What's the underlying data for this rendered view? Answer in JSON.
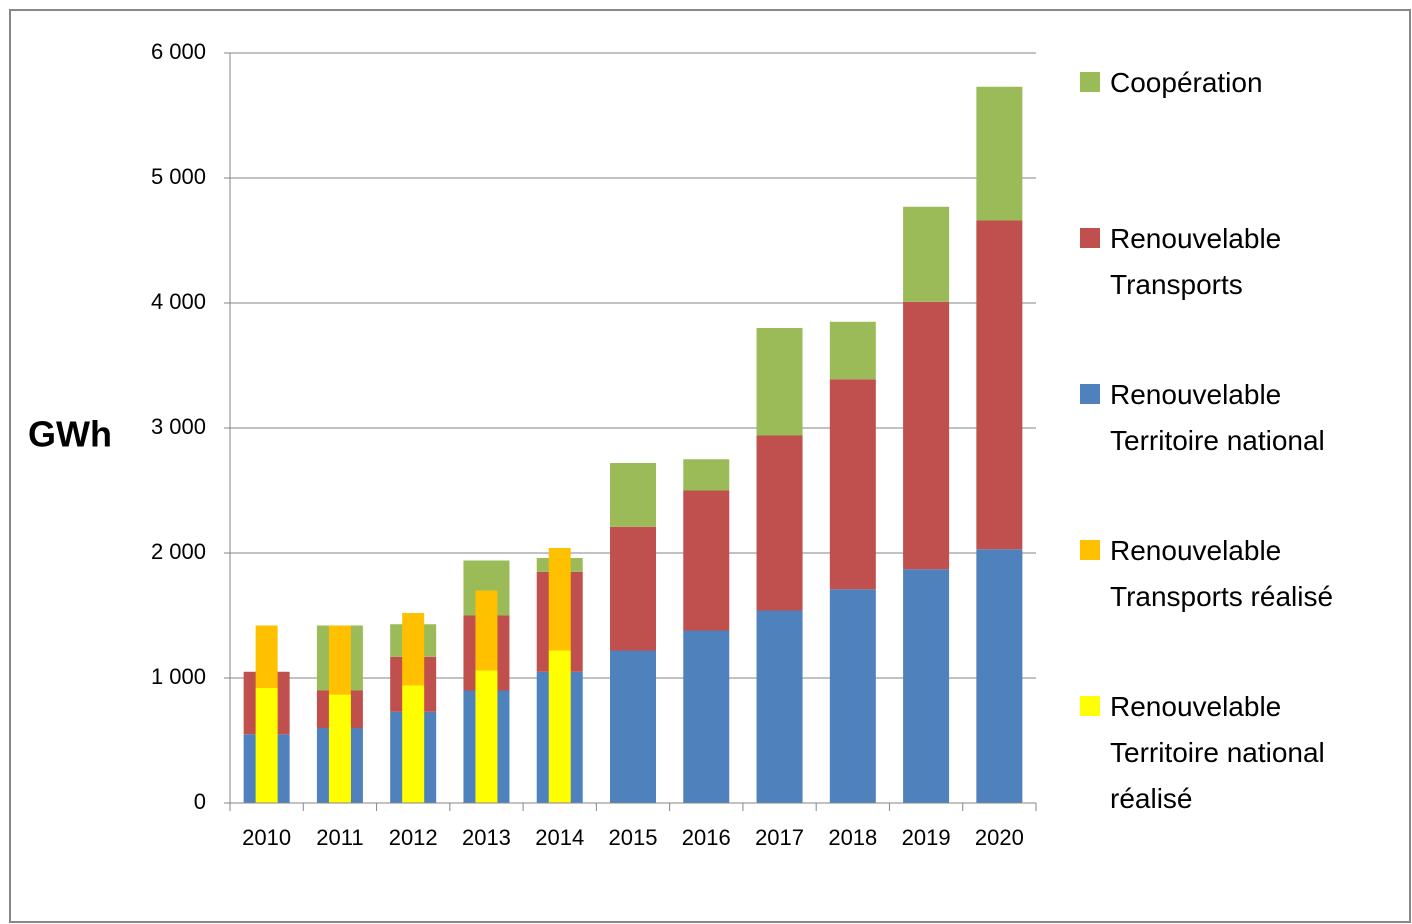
{
  "chart_data": {
    "type": "bar",
    "y_label": "GWh",
    "categories": [
      "2010",
      "2011",
      "2012",
      "2013",
      "2014",
      "2015",
      "2016",
      "2017",
      "2018",
      "2019",
      "2020"
    ],
    "series": [
      {
        "name": "Renouvelable Territoire national",
        "color": "#4f81bd",
        "values": [
          550,
          600,
          730,
          900,
          1050,
          1220,
          1380,
          1540,
          1710,
          1870,
          2030
        ]
      },
      {
        "name": "Renouvelable Transports",
        "color": "#c0504d",
        "values": [
          500,
          300,
          440,
          600,
          800,
          990,
          1120,
          1400,
          1680,
          2140,
          2630
        ]
      },
      {
        "name": "Coopération",
        "color": "#9bbb59",
        "values": [
          0,
          520,
          260,
          440,
          110,
          510,
          250,
          860,
          460,
          760,
          1070
        ]
      },
      {
        "name": "Renouvelable Territoire national réalisé",
        "color": "#ffff00",
        "overlay": true,
        "values": [
          920,
          870,
          940,
          1060,
          1220,
          null,
          null,
          null,
          null,
          null,
          null
        ]
      },
      {
        "name": "Renouvelable Transports réalisé",
        "color": "#ffc000",
        "overlay": true,
        "values": [
          500,
          550,
          580,
          640,
          820,
          null,
          null,
          null,
          null,
          null,
          null
        ]
      }
    ],
    "legend_order": [
      2,
      1,
      0,
      4,
      3
    ],
    "ylim": [
      0,
      6000
    ],
    "yticks": [
      0,
      {
        "value": 1000,
        "label": "1 000"
      },
      {
        "value": 2000,
        "label": "2 000"
      },
      {
        "value": 3000,
        "label": "3 000"
      },
      {
        "value": 4000,
        "label": "4 000"
      },
      {
        "value": 5000,
        "label": "5 000"
      },
      {
        "value": 6000,
        "label": "6 000"
      }
    ],
    "grid": true,
    "legend": "right"
  }
}
